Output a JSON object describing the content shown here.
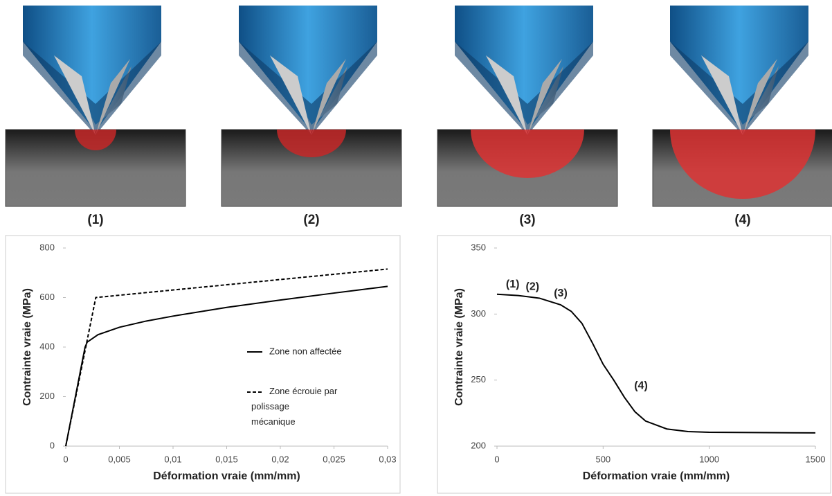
{
  "illustrations": {
    "labels": [
      "(1)",
      "(2)",
      "(3)",
      "(4)"
    ]
  },
  "chart_data": [
    {
      "type": "line",
      "x_label": "Déformation vraie (mm/mm)",
      "y_label": "Contrainte vraie (MPa)",
      "xlim": [
        0,
        0.03
      ],
      "ylim": [
        0,
        800
      ],
      "xticks": [
        0,
        {
          "value": 0.005,
          "label": "0,005"
        },
        {
          "value": 0.01,
          "label": "0,01"
        },
        {
          "value": 0.015,
          "label": "0,015"
        },
        {
          "value": 0.02,
          "label": "0,02"
        },
        {
          "value": 0.025,
          "label": "0,025"
        },
        {
          "value": 0.03,
          "label": "0,03"
        }
      ],
      "yticks": [
        0,
        200,
        400,
        600,
        800
      ],
      "legend": "center-right",
      "series": [
        {
          "name": "Zone non affectée",
          "color": "#000000",
          "style": "solid",
          "x": [
            0,
            0.0018,
            0.002,
            0.003,
            0.005,
            0.0075,
            0.01,
            0.015,
            0.02,
            0.025,
            0.03
          ],
          "values": [
            0,
            400,
            420,
            450,
            480,
            505,
            525,
            560,
            590,
            618,
            645
          ]
        },
        {
          "name": "Zone écrouie par polissage mécanique",
          "color": "#000000",
          "style": "dashed",
          "x": [
            0,
            0.0028,
            0.03
          ],
          "values": [
            0,
            600,
            715
          ]
        }
      ]
    },
    {
      "type": "line",
      "x_label": "Déformation vraie (mm/mm)",
      "y_label": "Contrainte vraie (MPa)",
      "xlim": [
        0,
        1500
      ],
      "ylim": [
        200,
        350
      ],
      "xticks": [
        0,
        500,
        1000,
        1500
      ],
      "yticks": [
        200,
        250,
        300,
        350
      ],
      "annotations": [
        "(1)",
        "(2)",
        "(3)",
        "(4)"
      ],
      "series": [
        {
          "color": "#000000",
          "style": "solid",
          "x": [
            0,
            100,
            200,
            300,
            350,
            400,
            450,
            500,
            550,
            600,
            650,
            700,
            800,
            900,
            1000,
            1200,
            1500
          ],
          "values": [
            315,
            314,
            312,
            307,
            302,
            293,
            278,
            262,
            250,
            237,
            226,
            219,
            213,
            211,
            210.5,
            210.3,
            210
          ]
        }
      ]
    }
  ]
}
